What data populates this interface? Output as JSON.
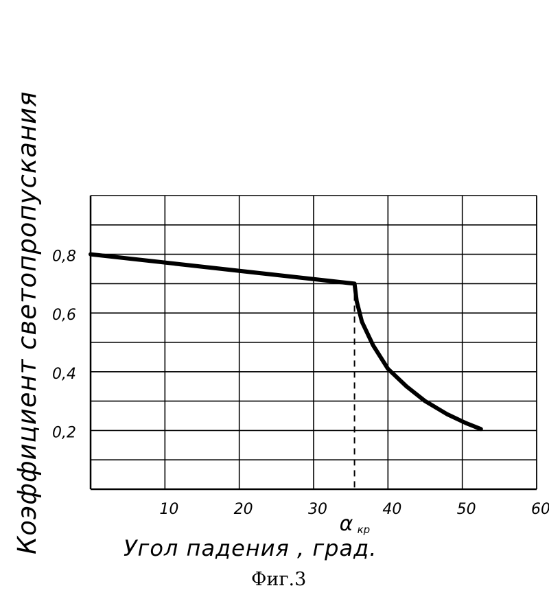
{
  "chart_data": {
    "type": "line",
    "xlabel": "Угол падения , град.",
    "ylabel": "Коэффициент светопропускания",
    "caption": "Фиг.3",
    "xlim": [
      0,
      60
    ],
    "ylim": [
      0.0,
      1.0
    ],
    "x_ticks": [
      10,
      20,
      30,
      40,
      50,
      60
    ],
    "y_ticks": [
      0.2,
      0.4,
      0.6,
      0.8
    ],
    "x_tick_labels": [
      "10",
      "20",
      "30",
      "40",
      "50",
      "60"
    ],
    "y_tick_labels": [
      "0,2",
      "0,4",
      "0,6",
      "0,8"
    ],
    "grid": true,
    "critical_angle": {
      "x": 35.5,
      "label": "α",
      "label_sub": "кр"
    },
    "series": [
      {
        "x": [
          0,
          35.5,
          35.8,
          36.5,
          38,
          40,
          42.5,
          45,
          48,
          50.5,
          52.5
        ],
        "y": [
          0.8,
          0.7,
          0.64,
          0.57,
          0.49,
          0.41,
          0.35,
          0.3,
          0.255,
          0.225,
          0.205
        ]
      }
    ]
  }
}
